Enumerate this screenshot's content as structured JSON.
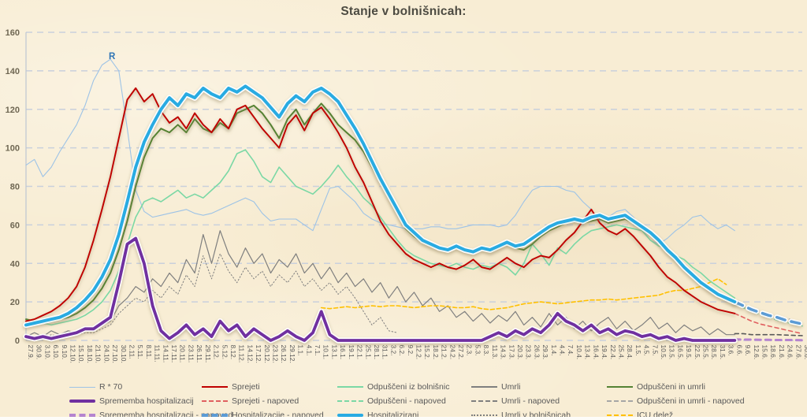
{
  "title": "Stanje v bolnišnicah:",
  "annotations": {
    "r_label": "R"
  },
  "colors": {
    "background": "#f8edd4",
    "grid": "#c9d0dc",
    "axis": "#bdc6d2",
    "y_label": "#6f6753",
    "x_label": "#595959",
    "title": "#4c4a41",
    "r_annotation": "#2e74b5"
  },
  "axes": {
    "y_ticks": [
      0,
      20,
      40,
      60,
      80,
      100,
      120,
      140,
      160
    ]
  },
  "legend": [
    {
      "id": "r70",
      "label": "R * 70",
      "col": 0,
      "row": 0,
      "color": "#9dc3e6",
      "kind": "thin"
    },
    {
      "id": "sprememba",
      "label": "Sprememba hospitalizacij",
      "col": 0,
      "row": 1,
      "color": "#7030a0",
      "kind": "thick"
    },
    {
      "id": "sprememba-napoved",
      "label": "Sprememba hospitalizacij - napoved",
      "col": 0,
      "row": 2,
      "color": "#b584cf",
      "kind": "thickdash"
    },
    {
      "id": "sprejeti",
      "label": "Sprejeti",
      "col": 1,
      "row": 0,
      "color": "#c00000",
      "kind": "solid"
    },
    {
      "id": "sprejeti-napoved",
      "label": "Sprejeti - napoved",
      "col": 1,
      "row": 1,
      "color": "#e06060",
      "kind": "dash"
    },
    {
      "id": "hospitalizacije-napoved",
      "label": "Hospitalizacije - napoved",
      "col": 1,
      "row": 2,
      "color": "#5b9bd5",
      "kind": "thickdash"
    },
    {
      "id": "odpusceni",
      "label": "Odpuščeni iz bolnišnic",
      "col": 2,
      "row": 0,
      "color": "#7bd8a5",
      "kind": "solid"
    },
    {
      "id": "odpusceni-napoved",
      "label": "Odpuščeni - napoved",
      "col": 2,
      "row": 1,
      "color": "#7bd8a5",
      "kind": "dash"
    },
    {
      "id": "hospitalizirani",
      "label": "Hospitalizirani",
      "col": 2,
      "row": 2,
      "color": "#29abe2",
      "kind": "thick"
    },
    {
      "id": "umrli",
      "label": "Umrli",
      "col": 3,
      "row": 0,
      "color": "#7f7f7f",
      "kind": "solid"
    },
    {
      "id": "umrli-napoved",
      "label": "Umrli - napoved",
      "col": 3,
      "row": 1,
      "color": "#7f7f7f",
      "kind": "dash"
    },
    {
      "id": "umrli-v-bolnisnicah",
      "label": "Umrli v bolnišnicah",
      "col": 3,
      "row": 2,
      "color": "#7f7f7f",
      "kind": "dot"
    },
    {
      "id": "odpusceni-in-umrli",
      "label": "Odpuščeni in umrli",
      "col": 4,
      "row": 0,
      "color": "#548233",
      "kind": "solid"
    },
    {
      "id": "odpusceni-in-umrli-napoved",
      "label": "Odpuščeni in umrli - napoved",
      "col": 4,
      "row": 1,
      "color": "#a6a6a6",
      "kind": "dash"
    },
    {
      "id": "icu-delez",
      "label": "ICU delež",
      "col": 4,
      "row": 2,
      "color": "#ffc000",
      "kind": "dash"
    }
  ],
  "chart_data": {
    "type": "line",
    "title": "Stanje v bolnišnicah:",
    "xlabel": "",
    "ylabel": "",
    "ylim": [
      0,
      160
    ],
    "grid": true,
    "legend_position": "bottom",
    "x_labels": [
      "27.9.",
      "30.9.",
      "3.10.",
      "6.10.",
      "9.10.",
      "12.10.",
      "15.10.",
      "18.10.",
      "21.10.",
      "24.10.",
      "27.10.",
      "30.10.",
      "2.11.",
      "5.11.",
      "8.11.",
      "11.11.",
      "14.11.",
      "17.11.",
      "20.11.",
      "23.11.",
      "26.11.",
      "29.11.",
      "2.12.",
      "5.12.",
      "8.12.",
      "11.12.",
      "14.12.",
      "17.12.",
      "20.12.",
      "23.12.",
      "26.12.",
      "29.12.",
      "1.1.",
      "4.1.",
      "7.1.",
      "10.1.",
      "13.1.",
      "16.1.",
      "19.1.",
      "22.1.",
      "25.1.",
      "28.1.",
      "31.1.",
      "3.2.",
      "6.2.",
      "9.2.",
      "12.2.",
      "15.2.",
      "18.2.",
      "21.2.",
      "24.2.",
      "27.2.",
      "2.3.",
      "5.3.",
      "8.3.",
      "11.3.",
      "14.3.",
      "17.3.",
      "20.3.",
      "23.3.",
      "26.3.",
      "29.3.",
      "1.4.",
      "4.4.",
      "7.4.",
      "10.4.",
      "13.4.",
      "16.4.",
      "19.4.",
      "22.4.",
      "25.4.",
      "28.4.",
      "1.5.",
      "4.5.",
      "7.5.",
      "10.5.",
      "13.5.",
      "16.5.",
      "19.5.",
      "22.5.",
      "25.5.",
      "28.5.",
      "31.5.",
      "3.6.",
      "6.6.",
      "9.6.",
      "12.6.",
      "15.6.",
      "18.6.",
      "21.6.",
      "24.6.",
      "27.6.",
      "30.6."
    ],
    "series": [
      {
        "id": "r70",
        "name": "R * 70",
        "color": "#9dc3e6",
        "width": 1.1,
        "start_index": 0,
        "values": [
          91,
          94,
          85,
          90,
          98,
          105,
          112,
          122,
          135,
          143,
          146,
          140,
          110,
          78,
          67,
          64,
          65,
          66,
          67,
          68,
          66,
          65,
          66,
          68,
          70,
          72,
          74,
          72,
          66,
          62,
          63,
          63,
          63,
          60,
          57,
          68,
          79,
          80,
          76,
          72,
          66,
          63,
          61,
          60,
          59,
          58,
          58,
          58,
          59,
          59,
          58,
          58,
          59,
          60,
          60,
          60,
          59,
          60,
          65,
          72,
          78,
          80,
          80,
          80,
          78,
          77,
          72,
          68,
          62,
          64,
          67,
          68,
          64,
          58,
          52,
          50,
          53,
          57,
          60,
          64,
          65,
          61,
          58,
          60,
          57
        ]
      },
      {
        "id": "umrli-v-bolnisnicah",
        "name": "Umrli v bolnišnicah",
        "color": "#7f7f7f",
        "width": 1,
        "dash": "1.5 2.5",
        "start_index": 0,
        "values": [
          1,
          2,
          1,
          3,
          2,
          3,
          3,
          4,
          4,
          6,
          8,
          14,
          18,
          22,
          20,
          26,
          22,
          28,
          24,
          34,
          28,
          44,
          32,
          45,
          36,
          30,
          38,
          32,
          36,
          28,
          34,
          30,
          36,
          28,
          32,
          26,
          30,
          24,
          28,
          22,
          15,
          8,
          12,
          5,
          4
        ]
      },
      {
        "id": "umrli",
        "name": "Umrli",
        "color": "#7f7f7f",
        "width": 1.2,
        "start_index": 0,
        "values": [
          2,
          4,
          2,
          5,
          3,
          5,
          4,
          6,
          5,
          8,
          10,
          18,
          22,
          28,
          25,
          32,
          28,
          35,
          30,
          42,
          35,
          55,
          40,
          57,
          45,
          38,
          48,
          40,
          45,
          35,
          42,
          38,
          45,
          35,
          40,
          32,
          38,
          30,
          35,
          28,
          32,
          25,
          30,
          22,
          28,
          20,
          25,
          18,
          22,
          15,
          18,
          12,
          15,
          10,
          14,
          9,
          13,
          10,
          15,
          8,
          12,
          7,
          14,
          8,
          12,
          6,
          10,
          5,
          9,
          12,
          6,
          10,
          5,
          8,
          12,
          6,
          9,
          4,
          8,
          5,
          7,
          3,
          6,
          3,
          3
        ]
      },
      {
        "id": "icu-delez",
        "name": "ICU delež",
        "color": "#ffc000",
        "width": 1.6,
        "dash": "5 3",
        "start_index": 35,
        "values": [
          17,
          16.5,
          17,
          17.5,
          17,
          17.5,
          18,
          17.5,
          18,
          18,
          17.5,
          17,
          17.5,
          18,
          18,
          17.5,
          17,
          17,
          17.5,
          16.5,
          16,
          16.5,
          17,
          18,
          19,
          19.5,
          20,
          19.5,
          19,
          19.5,
          20,
          20.5,
          21,
          21,
          21.5,
          21,
          21.5,
          22,
          22.5,
          23,
          23.5,
          25,
          26,
          26,
          27,
          28,
          30,
          32,
          29
        ]
      },
      {
        "id": "odpusceni",
        "name": "Odpuščeni iz bolnišnic",
        "color": "#7bd8a5",
        "width": 1.6,
        "start_index": 0,
        "values": [
          10,
          9,
          9,
          8,
          9,
          10,
          11,
          13,
          16,
          20,
          26,
          36,
          50,
          64,
          72,
          74,
          72,
          75,
          78,
          74,
          76,
          74,
          78,
          82,
          88,
          97,
          99,
          93,
          85,
          82,
          90,
          85,
          80,
          78,
          76,
          80,
          85,
          91,
          85,
          80,
          74,
          70,
          64,
          58,
          52,
          47,
          44,
          42,
          40,
          39,
          38,
          40,
          38,
          37,
          39,
          38,
          40,
          38,
          34,
          40,
          50,
          45,
          39,
          48,
          45,
          50,
          54,
          57,
          58,
          59,
          60,
          59,
          58,
          57,
          52,
          49,
          48,
          44,
          42,
          38,
          35,
          31,
          28,
          25,
          22
        ]
      },
      {
        "id": "odpusceni-in-umrli-napoved",
        "name": "Odpuščeni in umrli - napoved",
        "color": "#a6a6a6",
        "width": 1.6,
        "dash": "5 4",
        "start_index": 84,
        "values": [
          19,
          17.5,
          16,
          15,
          13.5,
          12.5,
          11.5,
          10.5,
          9.5
        ]
      },
      {
        "id": "umrli-napoved",
        "name": "Umrli - napoved",
        "color": "#595959",
        "width": 1.6,
        "dash": "5 4",
        "start_index": 84,
        "values": [
          3.5,
          3.5,
          3,
          3,
          3,
          3,
          2.8,
          2.6,
          2.5
        ]
      },
      {
        "id": "sprememba-napoved",
        "name": "Sprememba hospitalizacij - napoved",
        "color": "#b584cf",
        "width": 3,
        "dash": "7 6",
        "start_index": 84,
        "values": [
          0.5,
          0.4,
          0.4,
          0.3,
          0.3,
          0.2,
          0.2,
          0.2,
          0.1
        ]
      },
      {
        "id": "odpusceni-napoved",
        "name": "Odpuščeni - napoved",
        "color": "#7bd8a5",
        "width": 1.6,
        "dash": "5 4",
        "start_index": 84,
        "values": [
          19,
          17,
          15,
          13.5,
          12,
          10.5,
          9.5,
          8.5,
          7.5
        ]
      },
      {
        "id": "sprejeti-napoved",
        "name": "Sprejeti - napoved",
        "color": "#e06060",
        "width": 1.6,
        "dash": "5 4",
        "start_index": 84,
        "values": [
          14,
          12,
          10,
          8.5,
          7.5,
          6.5,
          5.5,
          4.5,
          3.5
        ]
      },
      {
        "id": "odpusceni-in-umrli",
        "name": "Odpuščeni in umrli",
        "color": "#548233",
        "width": 2,
        "glow": true,
        "start_index": 0,
        "values": [
          11,
          10,
          10,
          10,
          11,
          12,
          14,
          17,
          21,
          27,
          35,
          47,
          62,
          80,
          95,
          105,
          110,
          108,
          112,
          108,
          115,
          110,
          108,
          113,
          110,
          118,
          120,
          122,
          118,
          112,
          105,
          115,
          120,
          112,
          118,
          123,
          118,
          112,
          108,
          104,
          98,
          90,
          82,
          74,
          66,
          58,
          54,
          51,
          49,
          48,
          47,
          49,
          47,
          46,
          48,
          46,
          48,
          50,
          48,
          47,
          50,
          54,
          57,
          59,
          61,
          62,
          61,
          62,
          63,
          61,
          62,
          63,
          61,
          58,
          55,
          51,
          46,
          42,
          38,
          34,
          30,
          26,
          24,
          21,
          19
        ]
      },
      {
        "id": "sprejeti",
        "name": "Sprejeti",
        "color": "#c00000",
        "width": 2,
        "glow": true,
        "start_index": 0,
        "values": [
          10,
          11,
          13,
          15,
          18,
          22,
          28,
          38,
          52,
          68,
          85,
          105,
          125,
          131,
          124,
          128,
          119,
          113,
          116,
          110,
          118,
          112,
          108,
          115,
          110,
          120,
          122,
          116,
          110,
          105,
          100,
          112,
          117,
          109,
          118,
          121,
          115,
          108,
          100,
          90,
          82,
          72,
          62,
          55,
          50,
          45,
          42,
          40,
          38,
          40,
          38,
          37,
          39,
          42,
          38,
          37,
          40,
          43,
          40,
          38,
          42,
          44,
          43,
          47,
          52,
          56,
          62,
          68,
          61,
          57,
          55,
          58,
          54,
          49,
          44,
          38,
          33,
          30,
          26,
          23,
          20,
          18,
          16,
          15,
          14
        ]
      },
      {
        "id": "sprememba",
        "name": "Sprememba hospitalizacij",
        "color": "#7030a0",
        "width": 3.8,
        "casing": true,
        "glow": true,
        "start_index": 0,
        "values": [
          2,
          1,
          2,
          1,
          2,
          3,
          4,
          6,
          6,
          9,
          12,
          30,
          50,
          53,
          40,
          18,
          5,
          1,
          4,
          8,
          3,
          6,
          2,
          10,
          5,
          8,
          2,
          6,
          3,
          0,
          2,
          5,
          2,
          0,
          4,
          15,
          3,
          0,
          0,
          0,
          0,
          0,
          0,
          0,
          0,
          0,
          0,
          0,
          0,
          0,
          0,
          0,
          0,
          0,
          0,
          2,
          4,
          2,
          5,
          3,
          6,
          4,
          8,
          14,
          10,
          8,
          5,
          8,
          4,
          6,
          3,
          5,
          4,
          2,
          3,
          1,
          2,
          0,
          1,
          0,
          0,
          0,
          0,
          0,
          0
        ]
      },
      {
        "id": "hospitalizacije-napoved",
        "name": "Hospitalizacije - napoved",
        "color": "#5b9bd5",
        "width": 3.5,
        "dash": "11 8",
        "casing": true,
        "glow": true,
        "start_index": 84,
        "values": [
          20,
          18,
          16,
          14.5,
          13,
          12,
          10.5,
          9.5,
          8.5
        ]
      },
      {
        "id": "hospitalizirani",
        "name": "Hospitalizirani",
        "color": "#29abe2",
        "width": 4,
        "casing": true,
        "glow": true,
        "start_index": 0,
        "values": [
          8,
          9,
          10,
          11,
          12,
          14,
          17,
          21,
          26,
          33,
          42,
          55,
          72,
          90,
          103,
          112,
          120,
          126,
          122,
          128,
          126,
          131,
          128,
          126,
          131,
          129,
          132,
          129,
          126,
          121,
          116,
          123,
          127,
          124,
          129,
          131,
          128,
          124,
          117,
          110,
          102,
          93,
          84,
          76,
          68,
          60,
          56,
          52,
          50,
          48,
          47,
          49,
          47,
          46,
          48,
          47,
          49,
          51,
          49,
          50,
          53,
          56,
          59,
          61,
          62,
          63,
          62,
          64,
          65,
          63,
          64,
          65,
          62,
          59,
          56,
          52,
          47,
          43,
          38,
          34,
          30,
          27,
          24,
          22,
          20
        ]
      }
    ]
  }
}
